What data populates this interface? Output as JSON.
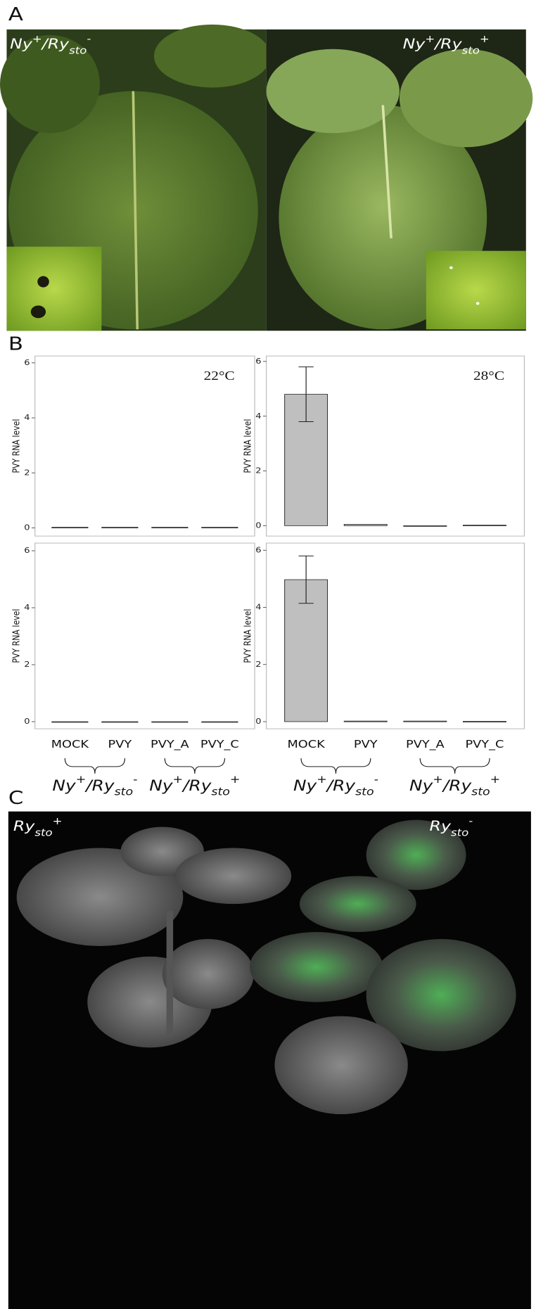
{
  "panel_labels": [
    "A",
    "B",
    "C"
  ],
  "photo_labels": {
    "a_left": [
      "Ny",
      "+",
      "/Ry",
      "sto",
      "-"
    ],
    "a_right": [
      "Ny",
      "+",
      "/Ry",
      "sto",
      "+"
    ],
    "c_left": [
      "Ry",
      "sto",
      "+"
    ],
    "c_right": [
      "Ry",
      "sto",
      "-"
    ]
  },
  "genotype_labels_left": [
    [
      "Ny",
      "+",
      "/Ry",
      "sto",
      "-"
    ],
    [
      "Ny",
      "+",
      "/Ry",
      "sto",
      "+"
    ]
  ],
  "genotype_labels_right": [
    [
      "Ny",
      "+",
      "/Ry",
      "sto",
      "-"
    ],
    [
      "Ny",
      "+",
      "/Ry",
      "sto",
      "+"
    ]
  ],
  "chart_data": [
    {
      "type": "bar",
      "annotation": "22°C",
      "y_label": "PVY RNA level",
      "categories": [
        null,
        null,
        null,
        null
      ],
      "values": [
        0.02,
        0.02,
        0.02,
        0.02
      ],
      "errors": [
        null,
        null,
        null,
        null
      ],
      "color": "#bfbfbf",
      "ylim": [
        -0.3,
        6.25
      ],
      "yticks": [
        0,
        2,
        4,
        6
      ]
    },
    {
      "type": "bar",
      "annotation": "28°C",
      "y_label": "PVY RNA level",
      "categories": [
        null,
        null,
        null,
        null
      ],
      "values": [
        4.8,
        0.05,
        0,
        0.02
      ],
      "errors": [
        1.0,
        null,
        null,
        null
      ],
      "color": "#bfbfbf",
      "ylim": [
        -0.38,
        6.2
      ],
      "yticks": [
        0,
        2,
        4,
        6
      ]
    },
    {
      "type": "bar",
      "y_label": "PVY RNA level",
      "categories": [
        "MOCK",
        "PVY",
        "PVY_A",
        "PVY_C"
      ],
      "values": [
        0,
        0,
        0,
        0
      ],
      "errors": [
        null,
        null,
        null,
        null
      ],
      "color": "#bfbfbf",
      "ylim": [
        -0.25,
        6.27
      ],
      "yticks": [
        0,
        2,
        4,
        6
      ]
    },
    {
      "type": "bar",
      "y_label": "PVY RNA level",
      "categories": [
        "MOCK",
        "PVY",
        "PVY_A",
        "PVY_C"
      ],
      "values": [
        4.97,
        0.02,
        0.02,
        0.01
      ],
      "errors": [
        0.83,
        null,
        null,
        null
      ],
      "color": "#bfbfbf",
      "ylim": [
        -0.25,
        6.25
      ],
      "yticks": [
        0,
        2,
        4,
        6
      ]
    }
  ]
}
